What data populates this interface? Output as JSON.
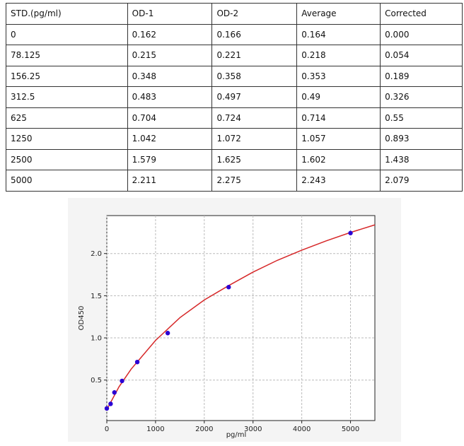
{
  "table": {
    "header": [
      "STD.(pg/ml)",
      "OD-1",
      "OD-2",
      "Average",
      "Corrected"
    ],
    "rows": [
      [
        "0",
        "0.162",
        "0.166",
        "0.164",
        "0.000"
      ],
      [
        "78.125",
        "0.215",
        "0.221",
        "0.218",
        "0.054"
      ],
      [
        "156.25",
        "0.348",
        "0.358",
        "0.353",
        "0.189"
      ],
      [
        "312.5",
        "0.483",
        "0.497",
        "0.49",
        "0.326"
      ],
      [
        "625",
        "0.704",
        "0.724",
        "0.714",
        "0.55"
      ],
      [
        "1250",
        "1.042",
        "1.072",
        "1.057",
        "0.893"
      ],
      [
        "2500",
        "1.579",
        "1.625",
        "1.602",
        "1.438"
      ],
      [
        "5000",
        "2.211",
        "2.275",
        "2.243",
        "2.079"
      ]
    ]
  },
  "chart_data": {
    "type": "scatter",
    "xlabel": "pg/ml",
    "ylabel": "OD450",
    "xlim": [
      0,
      5500
    ],
    "ylim": [
      0.02,
      2.45
    ],
    "xticks": [
      0,
      1000,
      2000,
      3000,
      4000,
      5000
    ],
    "yticks": [
      0.5,
      {
        "value": 1,
        "label": "1.0"
      },
      1.5,
      {
        "value": 2,
        "label": "2.0"
      }
    ],
    "grid": true,
    "series": [
      {
        "type": "scatter",
        "color": "#2a00d4",
        "x": [
          0,
          78.125,
          156.25,
          312.5,
          625,
          1250,
          2500,
          5000
        ],
        "values": [
          0.164,
          0.218,
          0.353,
          0.49,
          0.714,
          1.057,
          1.602,
          2.243
        ]
      },
      {
        "type": "line",
        "color": "#d62728",
        "x": [
          0,
          250,
          500,
          1000,
          1500,
          2000,
          2500,
          3000,
          3500,
          4000,
          4500,
          5000,
          5500
        ],
        "values": [
          0.15,
          0.42,
          0.63,
          0.97,
          1.24,
          1.45,
          1.62,
          1.78,
          1.92,
          2.04,
          2.15,
          2.25,
          2.34
        ]
      }
    ]
  }
}
